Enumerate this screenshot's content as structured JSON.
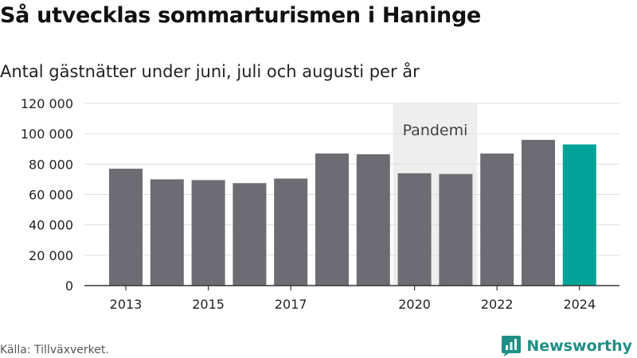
{
  "header": {
    "title": "Så utvecklas sommarturismen i Haninge",
    "subtitle": "Antal gästnätter under juni, juli och augusti per år"
  },
  "footer": {
    "source": "Källa: Tillväxverket.",
    "brand": "Newsworthy",
    "brand_icon": "bar-chart-logo-icon"
  },
  "colors": {
    "bar": "#6d6c72",
    "highlight": "#00a398",
    "pandemic_band": "#eeeeee",
    "grid": "#dddddd",
    "axis": "#333333",
    "brand": "#1f8f86"
  },
  "chart_data": {
    "type": "bar",
    "categories": [
      "2013",
      "2014",
      "2015",
      "2016",
      "2017",
      "2018",
      "2019",
      "2020",
      "2021",
      "2022",
      "2023",
      "2024"
    ],
    "values": [
      77000,
      70000,
      69500,
      67500,
      70500,
      87000,
      86500,
      74000,
      73500,
      87000,
      96000,
      93000
    ],
    "x_tick_labels": [
      "2013",
      "2015",
      "2017",
      "2020",
      "2022",
      "2024"
    ],
    "y_ticks": [
      0,
      20000,
      40000,
      60000,
      80000,
      100000,
      120000
    ],
    "y_tick_labels": [
      "0",
      "20 000",
      "40 000",
      "60 000",
      "80 000",
      "100 000",
      "120 000"
    ],
    "ylim": [
      0,
      120000
    ],
    "highlight_category": "2024",
    "annotation": {
      "label": "Pandemi",
      "from": "2020",
      "to": "2021"
    },
    "title": "Så utvecklas sommarturismen i Haninge",
    "subtitle": "Antal gästnätter under juni, juli och augusti per år",
    "xlabel": "",
    "ylabel": "",
    "grid": true
  }
}
